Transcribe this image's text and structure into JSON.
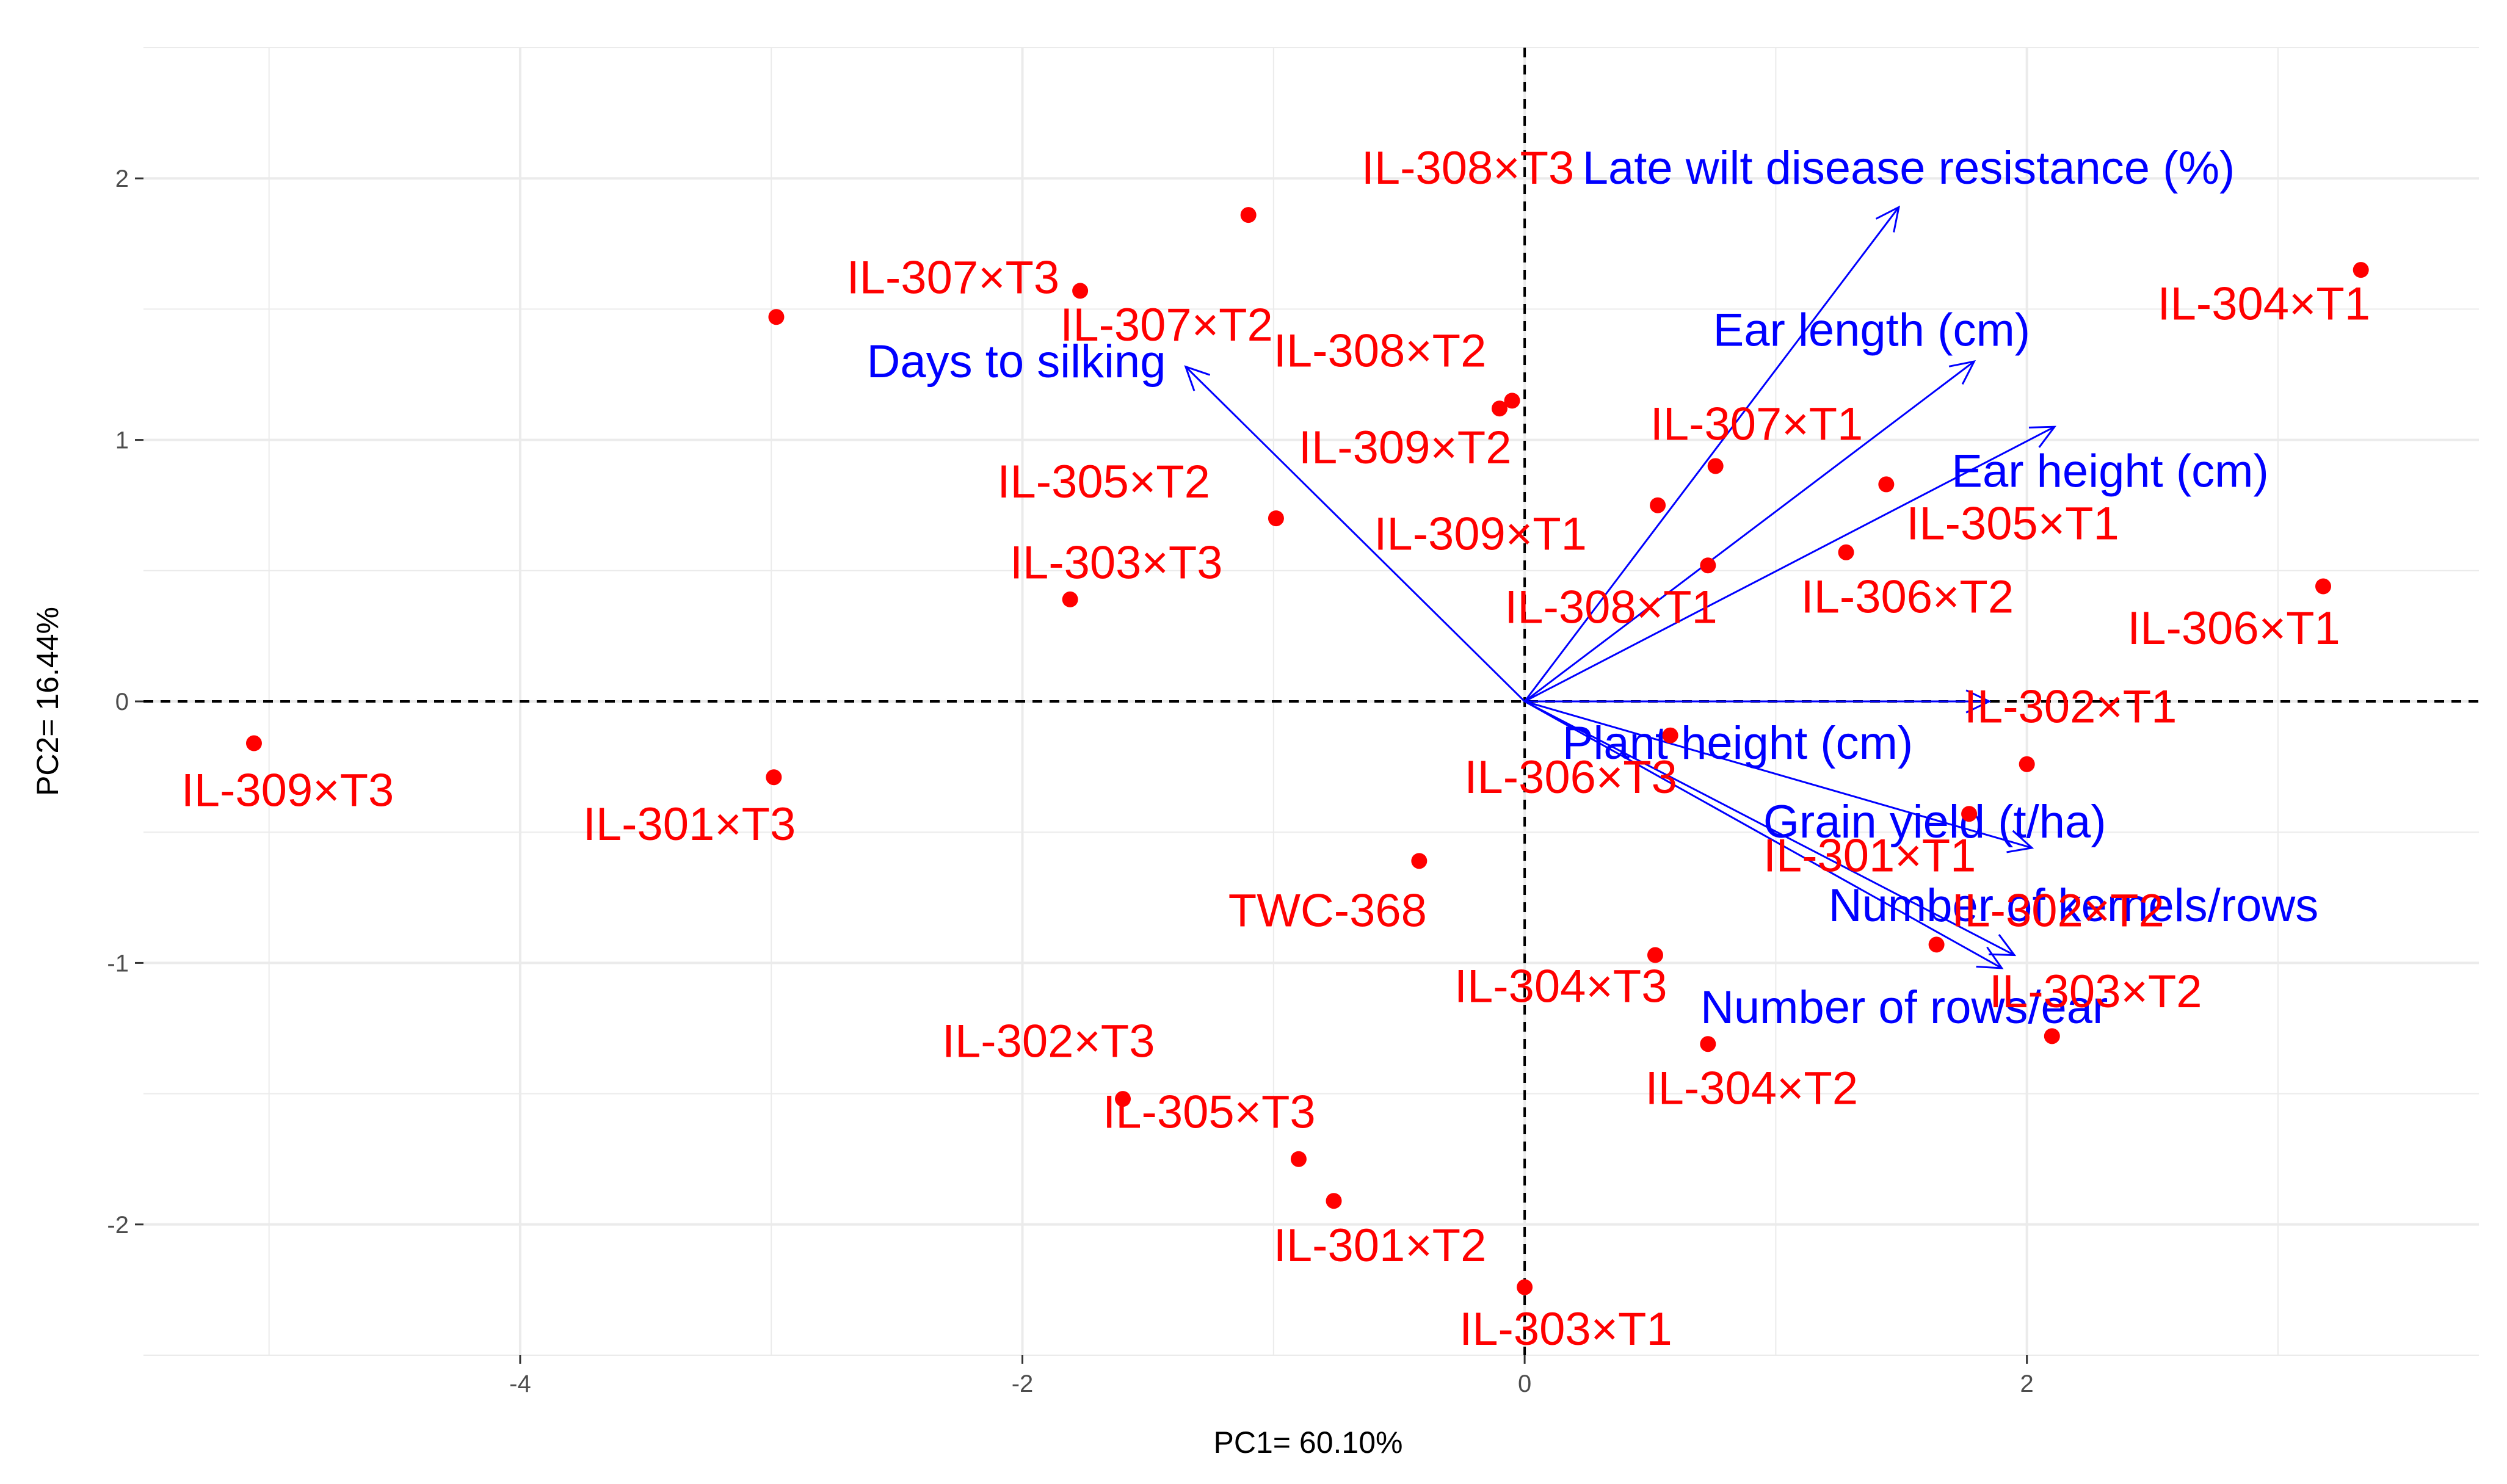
{
  "chart_data": {
    "type": "scatter",
    "subtype": "pca-biplot",
    "title": "",
    "xlabel": "PC1= 60.10%",
    "ylabel": "PC2=  16.44%",
    "xlim": [
      -5.5,
      3.8
    ],
    "ylim": [
      -2.5,
      2.5
    ],
    "xticks": [
      -4,
      -2,
      0,
      2
    ],
    "yticks": [
      -2,
      -1,
      0,
      1,
      2
    ],
    "xtick_labels": [
      "-4",
      "-2",
      "0",
      "2"
    ],
    "ytick_labels": [
      "-2",
      "-1",
      "0",
      "1",
      "2"
    ],
    "colors": {
      "points": "#ff0000",
      "vectors": "#0000ff",
      "grid": "#ebebeb",
      "refline": "#000000"
    },
    "points": [
      {
        "label": "IL-308×T3",
        "x": -1.1,
        "y": 1.86,
        "lx": -0.65,
        "ly": 1.98
      },
      {
        "label": "IL-307×T3",
        "x": -2.98,
        "y": 1.47,
        "lx": -2.7,
        "ly": 1.56
      },
      {
        "label": "IL-307×T2",
        "x": -1.77,
        "y": 1.57,
        "lx": -1.85,
        "ly": 1.38
      },
      {
        "label": "IL-308×T2",
        "x": -0.1,
        "y": 1.12,
        "lx": -1.0,
        "ly": 1.28
      },
      {
        "label": "IL-309×T2",
        "x": -0.05,
        "y": 1.15,
        "lx": -0.9,
        "ly": 0.91
      },
      {
        "label": "IL-305×T2",
        "x": -0.99,
        "y": 0.7,
        "lx": -2.1,
        "ly": 0.78
      },
      {
        "label": "IL-303×T3",
        "x": -1.81,
        "y": 0.39,
        "lx": -2.05,
        "ly": 0.47
      },
      {
        "label": "IL-307×T1",
        "x": 0.76,
        "y": 0.9,
        "lx": 0.5,
        "ly": 1.0
      },
      {
        "label": "IL-309×T1",
        "x": 0.53,
        "y": 0.75,
        "lx": -0.6,
        "ly": 0.58
      },
      {
        "label": "IL-305×T1",
        "x": 1.44,
        "y": 0.83,
        "lx": 1.52,
        "ly": 0.62
      },
      {
        "label": "IL-308×T1",
        "x": 0.73,
        "y": 0.52,
        "lx": -0.08,
        "ly": 0.3
      },
      {
        "label": "IL-306×T2",
        "x": 1.28,
        "y": 0.57,
        "lx": 1.1,
        "ly": 0.34
      },
      {
        "label": "IL-304×T1",
        "x": 3.33,
        "y": 1.65,
        "lx": 2.52,
        "ly": 1.46
      },
      {
        "label": "IL-306×T1",
        "x": 3.18,
        "y": 0.44,
        "lx": 2.4,
        "ly": 0.22
      },
      {
        "label": "IL-309×T3",
        "x": -5.06,
        "y": -0.16,
        "lx": -5.35,
        "ly": -0.4
      },
      {
        "label": "IL-301×T3",
        "x": -2.99,
        "y": -0.29,
        "lx": -3.75,
        "ly": -0.53
      },
      {
        "label": "IL-302×T1",
        "x": 2.0,
        "y": -0.24,
        "lx": 1.75,
        "ly": -0.08
      },
      {
        "label": "IL-306×T3",
        "x": 0.58,
        "y": -0.13,
        "lx": -0.24,
        "ly": -0.35
      },
      {
        "label": "IL-301×T1",
        "x": 1.77,
        "y": -0.43,
        "lx": 0.95,
        "ly": -0.65
      },
      {
        "label": "TWC-368",
        "x": -0.42,
        "y": -0.61,
        "lx": -1.18,
        "ly": -0.86
      },
      {
        "label": "IL-302×T2",
        "x": 1.64,
        "y": -0.93,
        "lx": 1.7,
        "ly": -0.86
      },
      {
        "label": "IL-303×T2",
        "x": 2.1,
        "y": -1.28,
        "lx": 1.85,
        "ly": -1.17
      },
      {
        "label": "IL-304×T3",
        "x": 0.52,
        "y": -0.97,
        "lx": -0.28,
        "ly": -1.15
      },
      {
        "label": "IL-304×T2",
        "x": 0.73,
        "y": -1.31,
        "lx": 0.48,
        "ly": -1.54
      },
      {
        "label": "IL-302×T3",
        "x": -1.6,
        "y": -1.52,
        "lx": -2.32,
        "ly": -1.36
      },
      {
        "label": "IL-305×T3",
        "x": -0.9,
        "y": -1.75,
        "lx": -1.68,
        "ly": -1.63
      },
      {
        "label": "IL-301×T2",
        "x": -0.76,
        "y": -1.91,
        "lx": -1.0,
        "ly": -2.14
      },
      {
        "label": "IL-303×T1",
        "x": 0.0,
        "y": -2.24,
        "lx": -0.26,
        "ly": -2.46
      }
    ],
    "vectors": [
      {
        "label": "Late wilt disease resistance (%)",
        "x": 1.49,
        "y": 1.89,
        "lx": 0.23,
        "ly": 1.98
      },
      {
        "label": "Ear length (cm)",
        "x": 1.79,
        "y": 1.3,
        "lx": 0.75,
        "ly": 1.36
      },
      {
        "label": "Ear height (cm)",
        "x": 2.11,
        "y": 1.05,
        "lx": 1.7,
        "ly": 0.82
      },
      {
        "label": "Days to  silking",
        "x": -1.35,
        "y": 1.28,
        "lx": -2.62,
        "ly": 1.24
      },
      {
        "label": "Plant height (cm)",
        "x": 1.85,
        "y": 0.0,
        "lx": 0.15,
        "ly": -0.22
      },
      {
        "label": "Grain yield (t/ha)",
        "x": 2.02,
        "y": -0.56,
        "lx": 0.95,
        "ly": -0.52
      },
      {
        "label": "Number of kernels/rows",
        "x": 1.95,
        "y": -0.97,
        "lx": 1.21,
        "ly": -0.84
      },
      {
        "label": "Number of rows/ear",
        "x": 1.9,
        "y": -1.02,
        "lx": 0.7,
        "ly": -1.23
      }
    ]
  }
}
